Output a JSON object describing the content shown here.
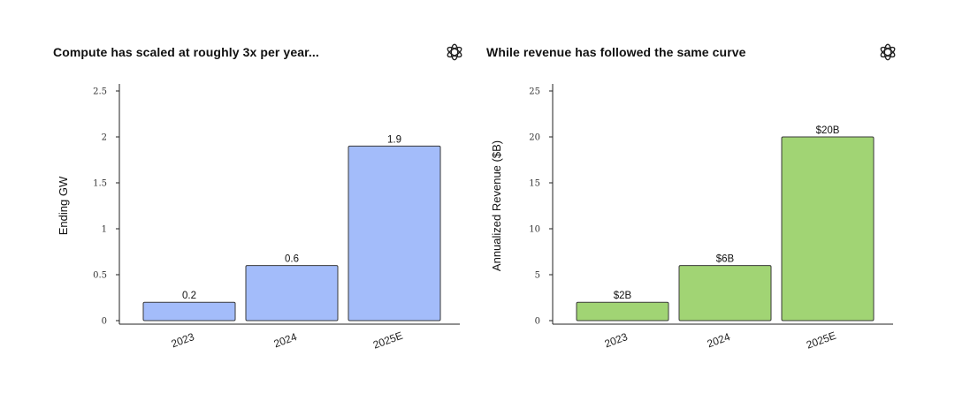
{
  "chart_data": [
    {
      "type": "bar",
      "title": "Compute has scaled at roughly 3x per year...",
      "xlabel": "",
      "ylabel": "Ending GW",
      "categories": [
        "2023",
        "2024",
        "2025E"
      ],
      "values": [
        0.2,
        0.6,
        1.9
      ],
      "data_labels": [
        "0.2",
        "0.6",
        "1.9"
      ],
      "ylim": [
        0,
        2.5
      ],
      "yticks": [
        0,
        0.5,
        1,
        1.5,
        2,
        2.5
      ],
      "ytick_labels": [
        "0",
        "0.5",
        "1",
        "1.5",
        "2",
        "2.5"
      ],
      "bar_color": "#a3bcfa",
      "grid": false,
      "logo": "openai-logo-icon"
    },
    {
      "type": "bar",
      "title": "While revenue has followed the same curve",
      "xlabel": "",
      "ylabel": "Annualized Revenue ($B)",
      "categories": [
        "2023",
        "2024",
        "2025E"
      ],
      "values": [
        2,
        6,
        20
      ],
      "data_labels": [
        "$2B",
        "$6B",
        "$20B"
      ],
      "ylim": [
        0,
        25
      ],
      "yticks": [
        0,
        5,
        10,
        15,
        20,
        25
      ],
      "ytick_labels": [
        "0",
        "5",
        "10",
        "15",
        "20",
        "25"
      ],
      "bar_color": "#a1d474",
      "grid": false,
      "logo": "openai-logo-icon"
    }
  ]
}
